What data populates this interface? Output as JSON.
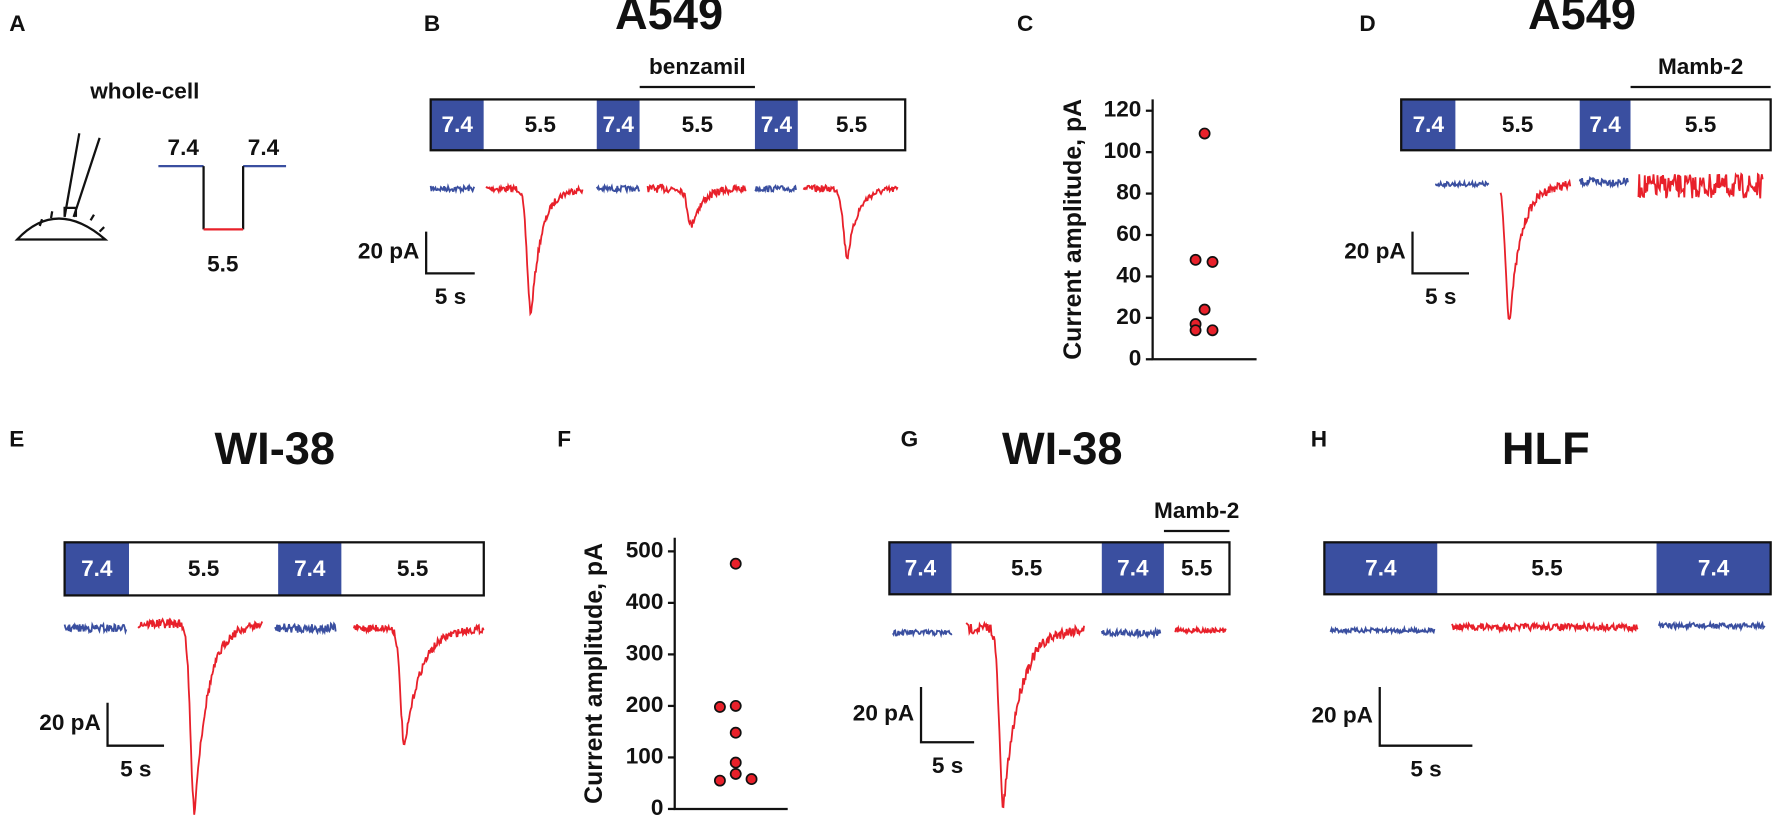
{
  "panels": {
    "a": {
      "label": "A",
      "caption": "whole-cell",
      "protocol": [
        "7.4",
        "7.4",
        "5.5"
      ]
    },
    "b": {
      "label": "B",
      "title": "A549",
      "drug": "benzamil",
      "segments": [
        "7.4",
        "5.5",
        "7.4",
        "5.5",
        "7.4",
        "5.5"
      ],
      "scale_current": "20 pA",
      "scale_time": "5 s"
    },
    "c": {
      "label": "C"
    },
    "d": {
      "label": "D",
      "title": "A549",
      "drug": "Mamb-2",
      "segments": [
        "7.4",
        "5.5",
        "7.4",
        "5.5"
      ],
      "scale_current": "20 pA",
      "scale_time": "5 s"
    },
    "e": {
      "label": "E",
      "title": "WI-38",
      "segments": [
        "7.4",
        "5.5",
        "7.4",
        "5.5"
      ],
      "scale_current": "20 pA",
      "scale_time": "5 s"
    },
    "f": {
      "label": "F"
    },
    "g": {
      "label": "G",
      "title": "WI-38",
      "drug": "Mamb-2",
      "segments": [
        "7.4",
        "5.5",
        "7.4",
        "5.5"
      ],
      "scale_current": "20 pA",
      "scale_time": "5 s"
    },
    "h": {
      "label": "H",
      "title": "HLF",
      "segments": [
        "7.4",
        "5.5",
        "7.4"
      ],
      "scale_current": "20 pA",
      "scale_time": "5 s"
    }
  },
  "chart_data": [
    {
      "type": "scatter",
      "ylabel": "Current amplitude, pA",
      "color": "#e8202a",
      "values": [
        109,
        48,
        47,
        24,
        17,
        14,
        14
      ],
      "ylim": [
        0,
        120
      ],
      "yticks": [
        0,
        20,
        40,
        60,
        80,
        100,
        120
      ]
    },
    {
      "type": "scatter",
      "ylabel": "Current amplitude, pA",
      "color": "#e8202a",
      "values": [
        476,
        198,
        200,
        148,
        90,
        55,
        68,
        58
      ],
      "ylim": [
        0,
        500
      ],
      "yticks": [
        0,
        100,
        200,
        300,
        400,
        500
      ]
    }
  ]
}
